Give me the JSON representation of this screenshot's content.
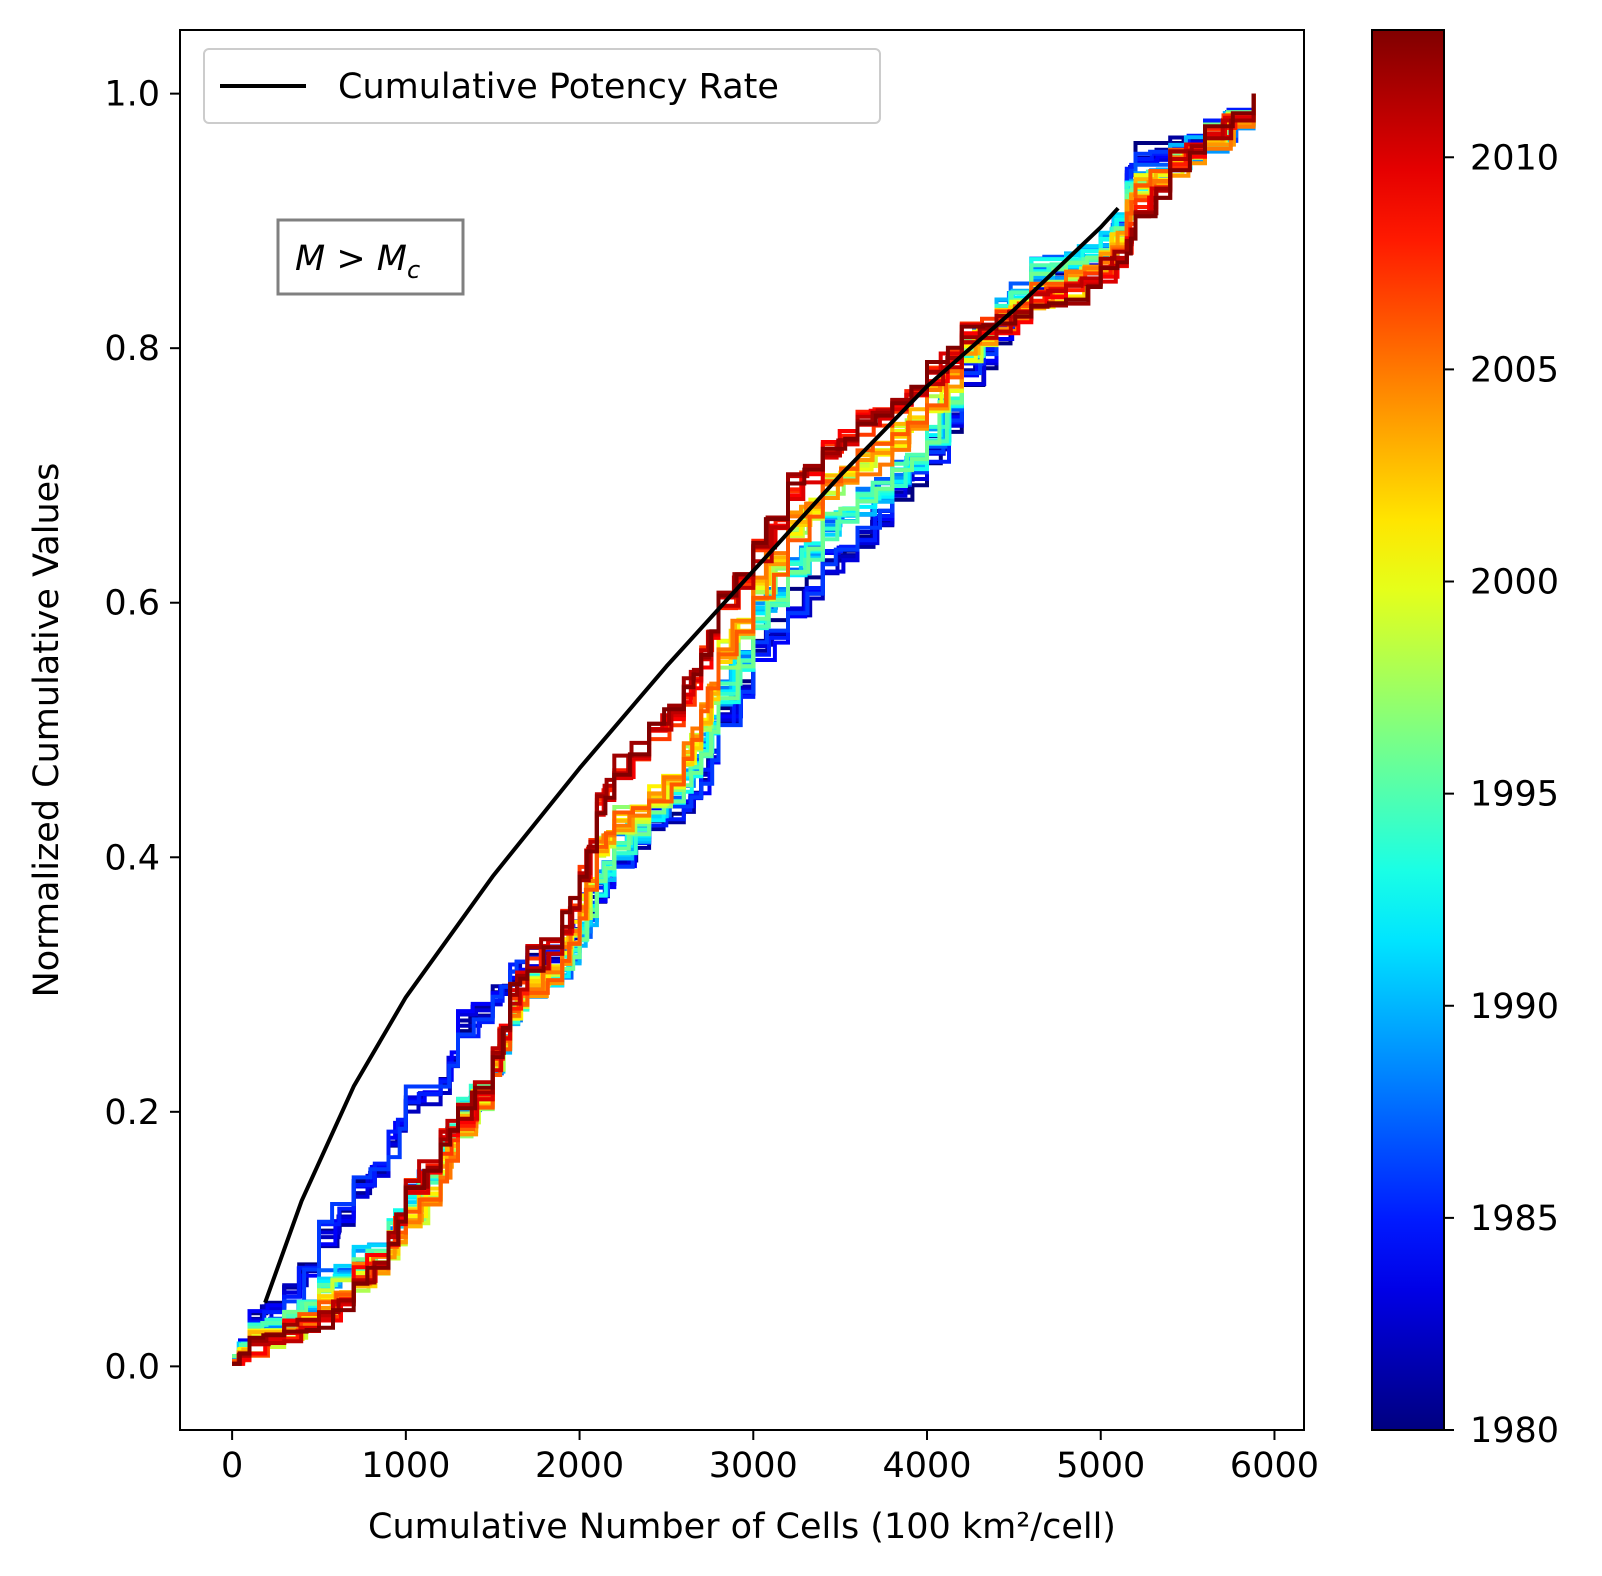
{
  "chart_data": {
    "type": "line",
    "xlabel": "Cumulative Number of Cells (100 km²/cell)",
    "ylabel": "Normalized Cumulative Values",
    "xlim": [
      -300,
      6170
    ],
    "ylim": [
      -0.05,
      1.05
    ],
    "x_ticks": [
      0,
      1000,
      2000,
      3000,
      4000,
      5000,
      6000
    ],
    "y_ticks": [
      0.0,
      0.2,
      0.4,
      0.6,
      0.8,
      1.0
    ],
    "x_tick_labels": [
      "0",
      "1000",
      "2000",
      "3000",
      "4000",
      "5000",
      "6000"
    ],
    "y_tick_labels": [
      "0.0",
      "0.2",
      "0.4",
      "0.6",
      "0.8",
      "1.0"
    ],
    "grid": false,
    "legend": {
      "placement": "top-left",
      "entries": [
        "Cumulative Potency Rate"
      ]
    },
    "annotation": {
      "main": "M > M",
      "subscript": "c"
    },
    "colorbar": {
      "colormap": "jet",
      "range": [
        1980,
        2013
      ],
      "ticks": [
        1980,
        1985,
        1990,
        1995,
        2000,
        2005,
        2010
      ],
      "tick_labels": [
        "1980",
        "1985",
        "1990",
        "1995",
        "2000",
        "2005",
        "2010"
      ]
    },
    "reference_curve": {
      "name": "Cumulative Potency Rate",
      "color": "#000000",
      "x": [
        190,
        400,
        700,
        1000,
        1500,
        2000,
        2500,
        3000,
        3500,
        4000,
        4500,
        5000,
        5100
      ],
      "y": [
        0.05,
        0.13,
        0.22,
        0.29,
        0.385,
        0.47,
        0.55,
        0.625,
        0.7,
        0.77,
        0.83,
        0.895,
        0.91
      ]
    },
    "x_max": 5880,
    "year_series_groups": [
      {
        "years": [
          1980,
          1981,
          1982,
          1983,
          1984,
          1985,
          1986
        ],
        "x": [
          0,
          100,
          300,
          500,
          700,
          900,
          1000,
          1200,
          1300,
          1500,
          1600,
          1700,
          1900,
          2000,
          2100,
          2200,
          2400,
          2600,
          2700,
          2800,
          3000,
          3200,
          3400,
          3600,
          3800,
          4000,
          4200,
          4400,
          4600,
          4800,
          5000,
          5150,
          5200,
          5400,
          5600,
          5880
        ],
        "y": [
          0.005,
          0.035,
          0.055,
          0.105,
          0.14,
          0.175,
          0.21,
          0.225,
          0.27,
          0.29,
          0.305,
          0.32,
          0.33,
          0.36,
          0.375,
          0.4,
          0.43,
          0.44,
          0.46,
          0.51,
          0.56,
          0.6,
          0.63,
          0.65,
          0.69,
          0.72,
          0.78,
          0.81,
          0.85,
          0.86,
          0.87,
          0.93,
          0.955,
          0.955,
          0.97,
          1.0
        ]
      },
      {
        "years": [
          1987,
          1988,
          1989,
          1990,
          1991,
          1992,
          1993,
          1994,
          1995,
          1996
        ],
        "x": [
          0,
          100,
          300,
          500,
          700,
          900,
          1000,
          1200,
          1300,
          1500,
          1600,
          1700,
          1900,
          2000,
          2100,
          2200,
          2400,
          2600,
          2700,
          2800,
          3000,
          3200,
          3400,
          3600,
          3800,
          4000,
          4200,
          4400,
          4600,
          4800,
          5000,
          5150,
          5200,
          5400,
          5600,
          5880
        ],
        "y": [
          0.008,
          0.022,
          0.04,
          0.065,
          0.085,
          0.105,
          0.135,
          0.165,
          0.2,
          0.24,
          0.275,
          0.3,
          0.315,
          0.34,
          0.38,
          0.41,
          0.44,
          0.46,
          0.49,
          0.53,
          0.59,
          0.63,
          0.66,
          0.68,
          0.7,
          0.73,
          0.8,
          0.83,
          0.86,
          0.87,
          0.88,
          0.92,
          0.935,
          0.95,
          0.965,
          1.0
        ]
      },
      {
        "years": [
          1997,
          1998,
          1999,
          2000,
          2001,
          2002,
          2003,
          2004,
          2005,
          2006
        ],
        "x": [
          0,
          100,
          300,
          500,
          700,
          900,
          1000,
          1200,
          1300,
          1500,
          1600,
          1700,
          1900,
          2000,
          2100,
          2200,
          2400,
          2600,
          2700,
          2800,
          3000,
          3200,
          3400,
          3600,
          3800,
          4000,
          4200,
          4400,
          4600,
          4800,
          5000,
          5150,
          5200,
          5400,
          5600,
          5880
        ],
        "y": [
          0.004,
          0.018,
          0.03,
          0.05,
          0.07,
          0.095,
          0.12,
          0.155,
          0.19,
          0.235,
          0.28,
          0.3,
          0.325,
          0.36,
          0.41,
          0.43,
          0.45,
          0.48,
          0.51,
          0.56,
          0.61,
          0.66,
          0.69,
          0.71,
          0.73,
          0.76,
          0.8,
          0.82,
          0.84,
          0.85,
          0.865,
          0.905,
          0.925,
          0.945,
          0.965,
          1.0
        ]
      },
      {
        "years": [
          2007,
          2008,
          2009,
          2010,
          2011,
          2012,
          2013
        ],
        "x": [
          0,
          100,
          300,
          500,
          700,
          900,
          1000,
          1200,
          1300,
          1500,
          1600,
          1700,
          1900,
          2000,
          2100,
          2200,
          2400,
          2600,
          2700,
          2800,
          3000,
          3200,
          3400,
          3600,
          3800,
          4000,
          4200,
          4400,
          4600,
          4800,
          5000,
          5150,
          5200,
          5400,
          5600,
          5880
        ],
        "y": [
          0.002,
          0.012,
          0.025,
          0.04,
          0.07,
          0.1,
          0.14,
          0.175,
          0.2,
          0.24,
          0.29,
          0.32,
          0.35,
          0.39,
          0.44,
          0.47,
          0.5,
          0.53,
          0.555,
          0.6,
          0.64,
          0.69,
          0.72,
          0.74,
          0.76,
          0.78,
          0.81,
          0.82,
          0.835,
          0.845,
          0.86,
          0.885,
          0.91,
          0.945,
          0.965,
          1.0
        ]
      }
    ]
  }
}
